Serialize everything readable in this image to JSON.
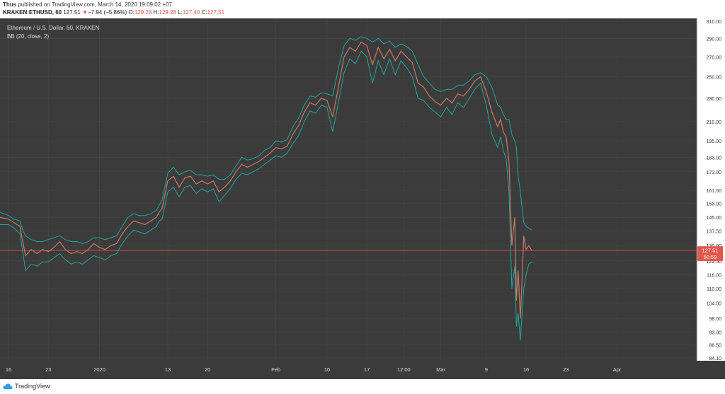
{
  "header": {
    "publisher": "Thus",
    "published_text": " published on TradingView.com, March 14, 2020 19:09:02 +07",
    "symbol": "KRAKEN:ETHUSD, 60",
    "last": "127.51",
    "change_arrow": "▼",
    "change": "−7.94 (−5.86%)",
    "o_label": "O:",
    "o_value": "129.28",
    "h_label": "H:",
    "h_value": "129.28",
    "l_label": "L:",
    "l_value": "127.40",
    "c_label": "C:",
    "c_value": "127.51"
  },
  "legend": {
    "title": "Ethereum / U.S. Dollar, 60, KRAKEN",
    "indicator": "BB (20, close, 2)"
  },
  "footer": {
    "brand": "TradingView"
  },
  "colors": {
    "background": "#3b3b3b",
    "grid": "#474747",
    "price_line": "#c97a67",
    "band": "#26a69a",
    "last_price_badge": "#e5564b",
    "axis_bg": "#ffffff"
  },
  "chart_data": {
    "type": "line",
    "title": "Ethereum / U.S. Dollar, 60, KRAKEN",
    "indicator": "BB (20, close, 2)",
    "y_scale": "log",
    "ylim": [
      84.1,
      310
    ],
    "y_ticks": [
      "310.00",
      "290.00",
      "270.00",
      "250.00",
      "230.00",
      "210.00",
      "195.00",
      "183.00",
      "173.00",
      "161.00",
      "153.00",
      "145.00",
      "137.50",
      "130.00",
      "122.50",
      "116.00",
      "110.00",
      "104.00",
      "98.00",
      "93.00",
      "88.50",
      "84.10"
    ],
    "x_ticks": [
      {
        "label": "16",
        "x": 0
      },
      {
        "label": "23",
        "x": 7
      },
      {
        "label": "2020",
        "x": 16
      },
      {
        "label": "13",
        "x": 28
      },
      {
        "label": "20",
        "x": 35
      },
      {
        "label": "Feb",
        "x": 47
      },
      {
        "label": "10",
        "x": 56
      },
      {
        "label": "17",
        "x": 63
      },
      {
        "label": "12:00",
        "x": 69.5
      },
      {
        "label": "Mar",
        "x": 76
      },
      {
        "label": "9",
        "x": 84
      },
      {
        "label": "16",
        "x": 91
      },
      {
        "label": "23",
        "x": 98
      },
      {
        "label": "Apr",
        "x": 107
      }
    ],
    "xlim": [
      -1.5,
      121
    ],
    "last_price": 127.51,
    "last_price_label": "127.51",
    "countdown_label": "50:59",
    "series": [
      {
        "x": [
          -1.5,
          0,
          1,
          2,
          2.5,
          3,
          4,
          5,
          6,
          7,
          8,
          9,
          10,
          11,
          12,
          13,
          14,
          15,
          16,
          17,
          18,
          19,
          20,
          21,
          22,
          23,
          24,
          25,
          26,
          26.5,
          27,
          28,
          29,
          30,
          31,
          32,
          33,
          34,
          35,
          36,
          37,
          38,
          39,
          40,
          41,
          42,
          43,
          44,
          45,
          46,
          47,
          48,
          49,
          50,
          51,
          52,
          53,
          54,
          55,
          56,
          57,
          58,
          59,
          60,
          61,
          62,
          63,
          64,
          65,
          66,
          67,
          68,
          69,
          70,
          71,
          72,
          73,
          74,
          75,
          76,
          77,
          78,
          79,
          80,
          81,
          82,
          83,
          84,
          85,
          86,
          86.5,
          87,
          87.5,
          88,
          88.5,
          89,
          89.3,
          89.6,
          90,
          90.3,
          90.6,
          91,
          91.5,
          92
        ],
        "values": [
          145,
          144,
          142,
          140,
          132,
          125,
          128,
          126,
          128,
          127,
          129,
          132,
          128,
          126,
          127,
          126,
          128,
          131,
          129,
          128,
          130,
          131,
          136,
          140,
          143,
          142,
          141,
          143,
          145,
          148,
          150,
          167,
          170,
          163,
          169,
          170,
          165,
          167,
          165,
          167,
          160,
          163,
          167,
          173,
          178,
          176,
          178,
          180,
          183,
          186,
          190,
          189,
          191,
          200,
          207,
          218,
          226,
          224,
          230,
          228,
          214,
          240,
          270,
          280,
          276,
          286,
          282,
          262,
          280,
          268,
          278,
          266,
          276,
          270,
          264,
          244,
          240,
          232,
          227,
          224,
          230,
          226,
          234,
          232,
          238,
          246,
          250,
          236,
          218,
          206,
          212,
          202,
          198,
          180,
          130,
          145,
          105,
          118,
          98,
          115,
          135,
          128,
          130,
          127.5
        ],
        "upper": [
          148,
          146,
          144,
          143,
          138,
          135,
          133,
          132,
          132,
          133,
          134,
          135,
          133,
          132,
          132,
          131,
          132,
          134,
          134,
          133,
          134,
          135,
          140,
          145,
          147,
          146,
          146,
          147,
          149,
          152,
          155,
          172,
          176,
          171,
          173,
          174,
          171,
          171,
          170,
          171,
          168,
          168,
          171,
          177,
          183,
          181,
          182,
          184,
          188,
          190,
          195,
          194,
          196,
          206,
          213,
          224,
          232,
          231,
          235,
          234,
          232,
          258,
          282,
          290,
          288,
          292,
          290,
          286,
          290,
          284,
          287,
          280,
          284,
          281,
          276,
          262,
          250,
          244,
          238,
          236,
          238,
          238,
          242,
          242,
          246,
          252,
          254,
          250,
          240,
          224,
          222,
          216,
          212,
          212,
          200,
          195,
          190,
          170,
          160,
          150,
          142,
          140,
          139,
          138
        ],
        "lower": [
          141,
          141,
          139,
          136,
          127,
          118,
          121,
          120,
          122,
          122,
          124,
          126,
          123,
          121,
          122,
          121,
          123,
          125,
          124,
          123,
          125,
          126,
          131,
          135,
          138,
          137,
          136,
          138,
          140,
          143,
          144,
          160,
          163,
          157,
          163,
          164,
          159,
          162,
          160,
          162,
          154,
          158,
          162,
          168,
          172,
          171,
          173,
          175,
          178,
          181,
          184,
          183,
          186,
          193,
          199,
          210,
          219,
          217,
          224,
          222,
          202,
          226,
          254,
          268,
          263,
          276,
          270,
          244,
          266,
          252,
          268,
          252,
          266,
          259,
          250,
          230,
          228,
          222,
          218,
          214,
          222,
          216,
          226,
          222,
          230,
          238,
          244,
          224,
          200,
          190,
          198,
          188,
          182,
          160,
          110,
          120,
          95,
          100,
          90,
          100,
          110,
          116,
          121,
          122
        ]
      }
    ]
  }
}
